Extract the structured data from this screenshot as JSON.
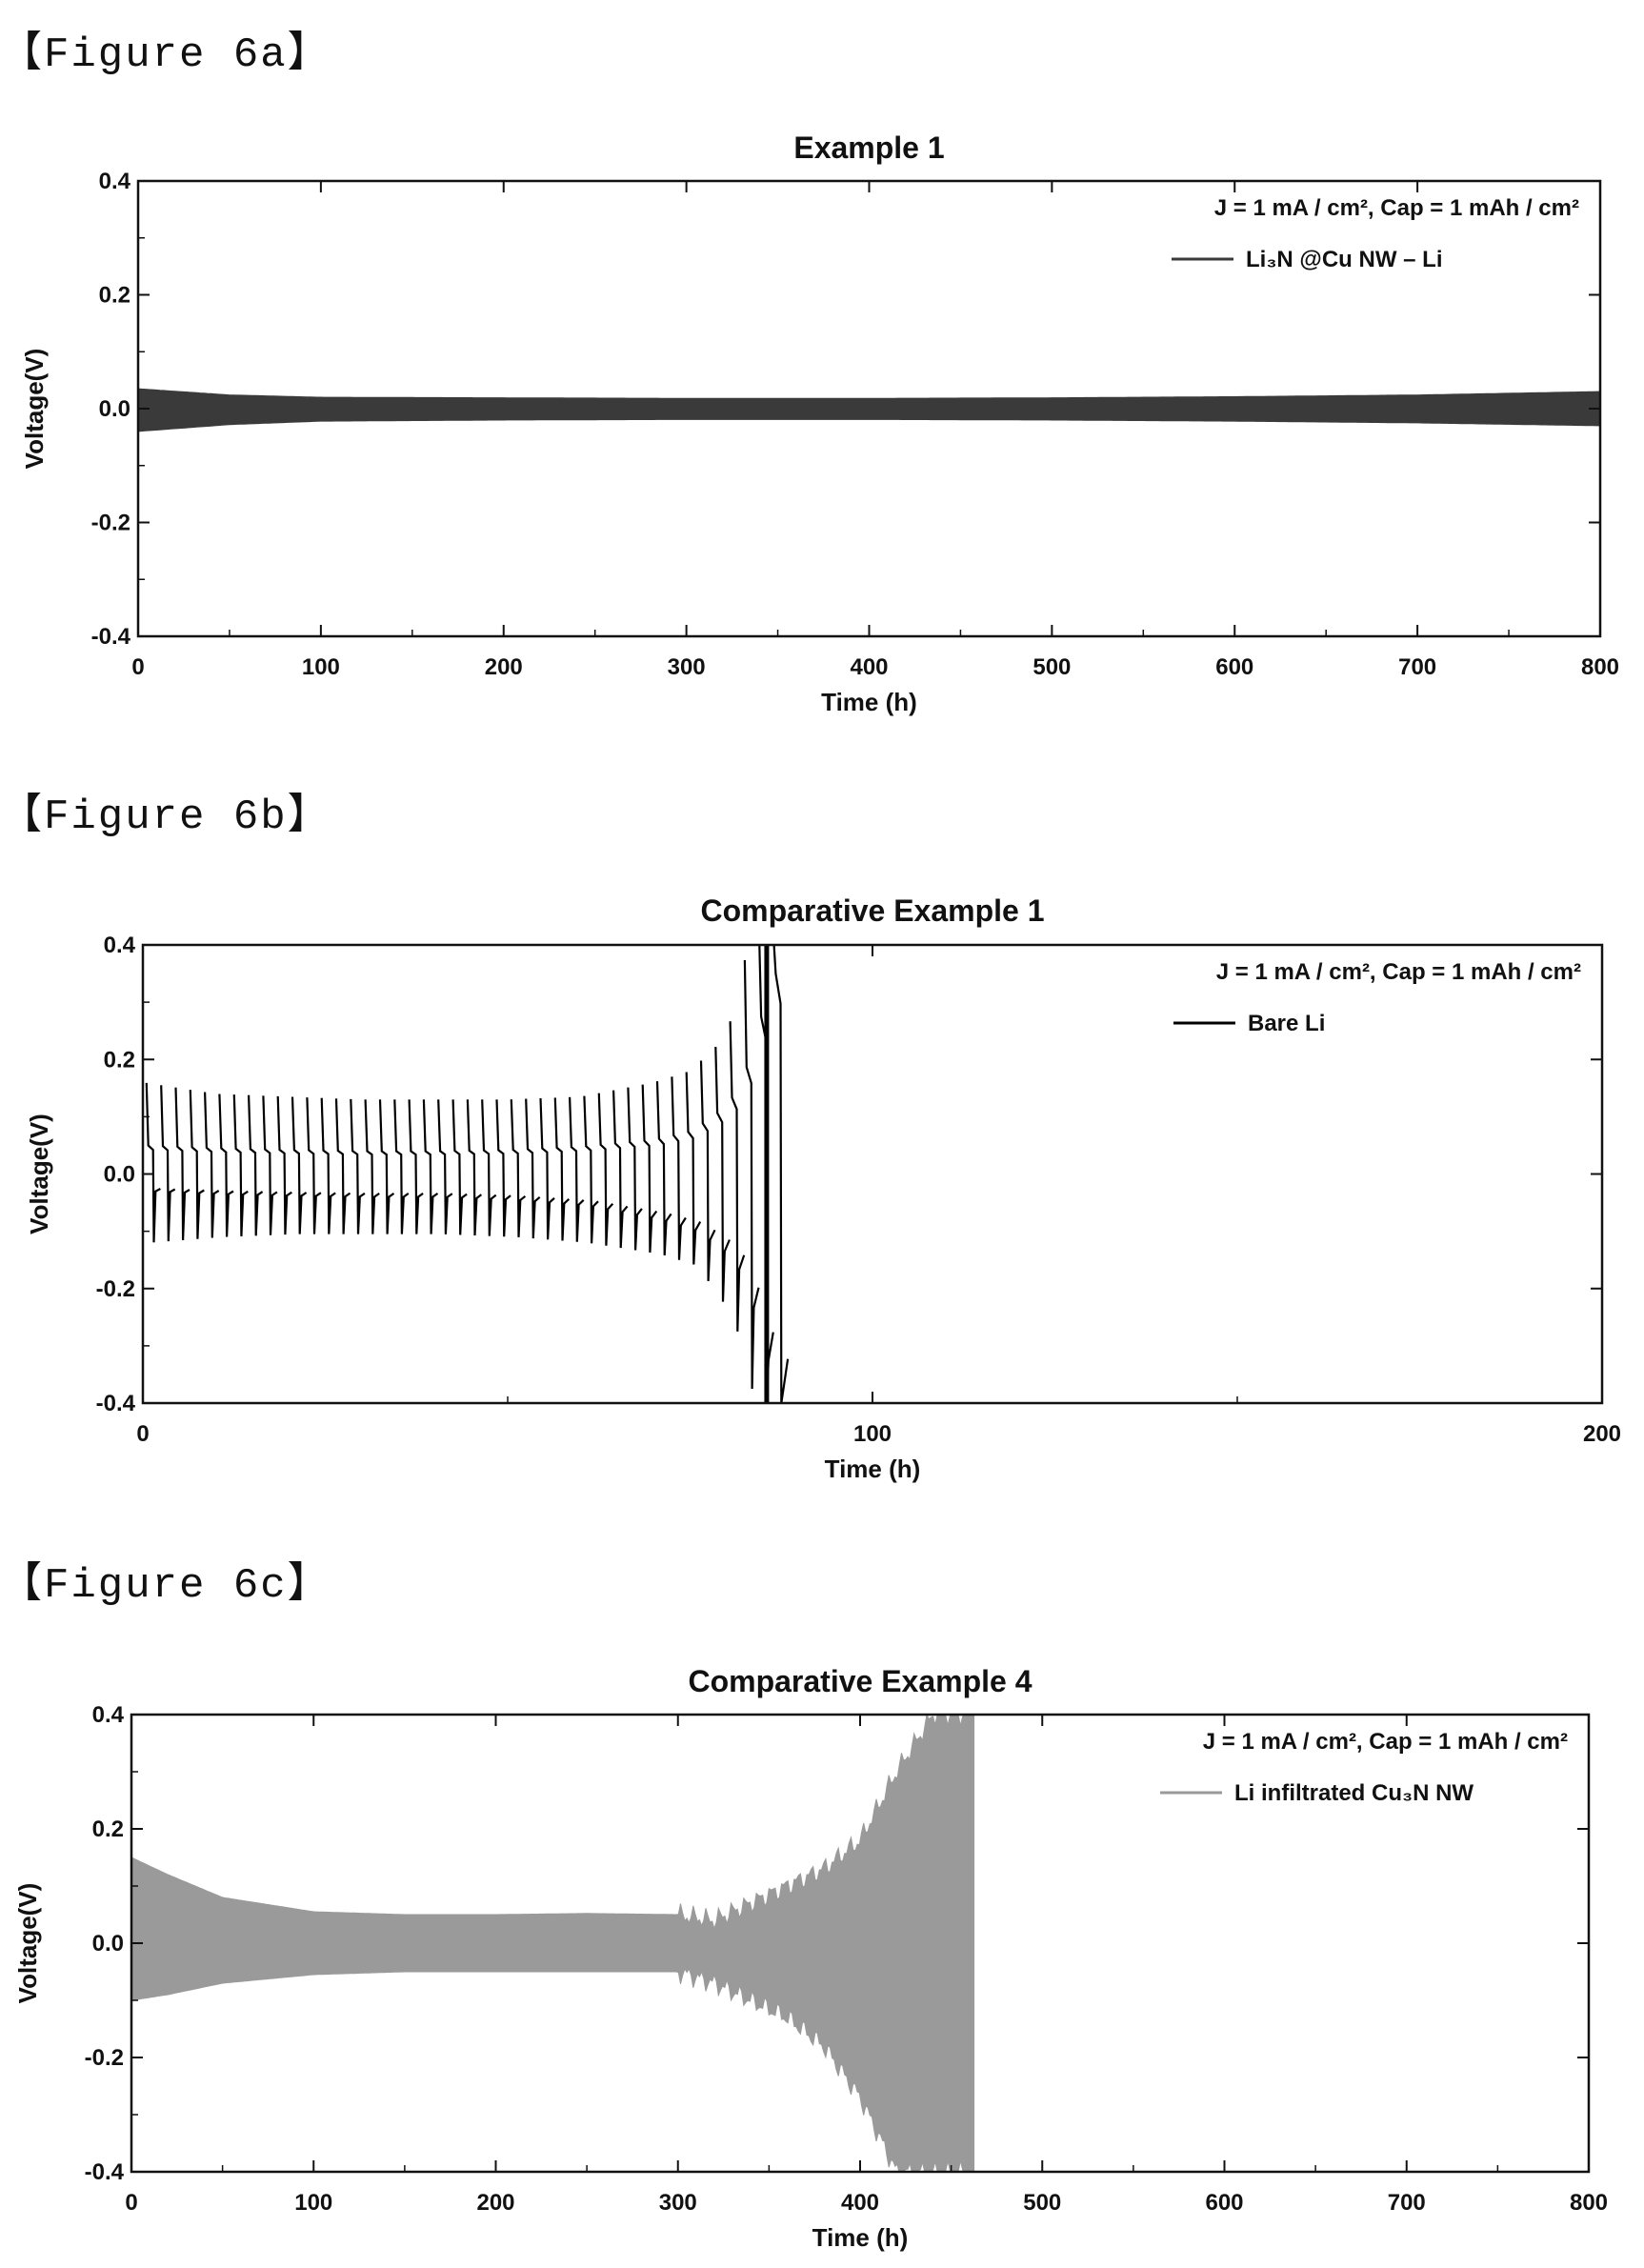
{
  "figures": [
    {
      "caption": "【Figure 6a】"
    },
    {
      "caption": "【Figure 6b】"
    },
    {
      "caption": "【Figure 6c】"
    }
  ],
  "chart_data": [
    {
      "type": "line",
      "title": "Example 1",
      "xlabel": "Time (h)",
      "ylabel": "Voltage(V)",
      "xlim": [
        0,
        800
      ],
      "ylim": [
        -0.4,
        0.4
      ],
      "x_ticks": [
        "0",
        "100",
        "200",
        "300",
        "400",
        "500",
        "600",
        "700",
        "800"
      ],
      "y_ticks": [
        "-0.4",
        "-0.2",
        "0.0",
        "0.2",
        "0.4"
      ],
      "annotation": "J = 1 mA / cm², Cap = 1 mAh / cm²",
      "legend_position": "top-right",
      "color": "#3a3a3a",
      "series": [
        {
          "name": "Li₃N @Cu NW – Li",
          "envelope": {
            "x": [
              0,
              50,
              100,
              200,
              300,
              400,
              500,
              600,
              700,
              800
            ],
            "upper": [
              0.035,
              0.024,
              0.02,
              0.019,
              0.018,
              0.018,
              0.019,
              0.021,
              0.024,
              0.03
            ],
            "lower": [
              -0.04,
              -0.028,
              -0.022,
              -0.02,
              -0.019,
              -0.019,
              -0.02,
              -0.022,
              -0.025,
              -0.03
            ]
          }
        }
      ]
    },
    {
      "type": "line",
      "title": "Comparative Example 1",
      "xlabel": "Time (h)",
      "ylabel": "Voltage(V)",
      "xlim": [
        0,
        200
      ],
      "ylim": [
        -0.4,
        0.4
      ],
      "x_ticks": [
        "0",
        "100",
        "200"
      ],
      "y_ticks": [
        "-0.4",
        "-0.2",
        "0.0",
        "0.2",
        "0.4"
      ],
      "annotation": "J = 1 mA / cm², Cap = 1 mAh / cm²",
      "legend_position": "top-right",
      "color": "#000000",
      "series": [
        {
          "name": "Bare Li",
          "cycle_period_h": 2,
          "end_h": 87,
          "envelope": {
            "x": [
              0,
              10,
              20,
              30,
              40,
              50,
              60,
              70,
              75,
              80,
              83,
              85,
              86
            ],
            "upper": [
              0.16,
              0.14,
              0.135,
              0.13,
              0.13,
              0.13,
              0.135,
              0.16,
              0.18,
              0.24,
              0.4,
              0.4,
              0.4
            ],
            "lower": [
              -0.12,
              -0.11,
              -0.105,
              -0.105,
              -0.105,
              -0.11,
              -0.12,
              -0.14,
              -0.16,
              -0.25,
              -0.4,
              -0.4,
              -0.4
            ],
            "plateau_upper": [
              0.05,
              0.045,
              0.042,
              0.04,
              0.04,
              0.042,
              0.048,
              0.06,
              0.075,
              0.12,
              0.2,
              0.3,
              0.35
            ],
            "plateau_lower": [
              -0.03,
              -0.035,
              -0.038,
              -0.04,
              -0.04,
              -0.045,
              -0.055,
              -0.08,
              -0.1,
              -0.15,
              -0.25,
              -0.35,
              -0.38
            ]
          }
        }
      ]
    },
    {
      "type": "line",
      "title": "Comparative Example 4",
      "xlabel": "Time (h)",
      "ylabel": "Voltage(V)",
      "xlim": [
        0,
        800
      ],
      "ylim": [
        -0.4,
        0.4
      ],
      "x_ticks": [
        "0",
        "100",
        "200",
        "300",
        "400",
        "500",
        "600",
        "700",
        "800"
      ],
      "y_ticks": [
        "-0.4",
        "-0.2",
        "0.0",
        "0.2",
        "0.4"
      ],
      "annotation": "J = 1 mA / cm², Cap = 1 mAh / cm²",
      "legend_position": "top-right",
      "color": "#9a9a9a",
      "series": [
        {
          "name": "Li infiltrated Cu₃N NW",
          "end_h": 462,
          "envelope": {
            "x": [
              0,
              20,
              50,
              100,
              150,
              200,
              250,
              300,
              320,
              340,
              360,
              380,
              400,
              420,
              440,
              462
            ],
            "upper": [
              0.15,
              0.12,
              0.08,
              0.055,
              0.05,
              0.05,
              0.052,
              0.05,
              0.04,
              0.07,
              0.1,
              0.13,
              0.18,
              0.3,
              0.4,
              0.4
            ],
            "lower": [
              -0.1,
              -0.09,
              -0.07,
              -0.055,
              -0.05,
              -0.05,
              -0.05,
              -0.05,
              -0.07,
              -0.1,
              -0.13,
              -0.18,
              -0.27,
              -0.4,
              -0.4,
              -0.4
            ]
          }
        }
      ]
    }
  ]
}
